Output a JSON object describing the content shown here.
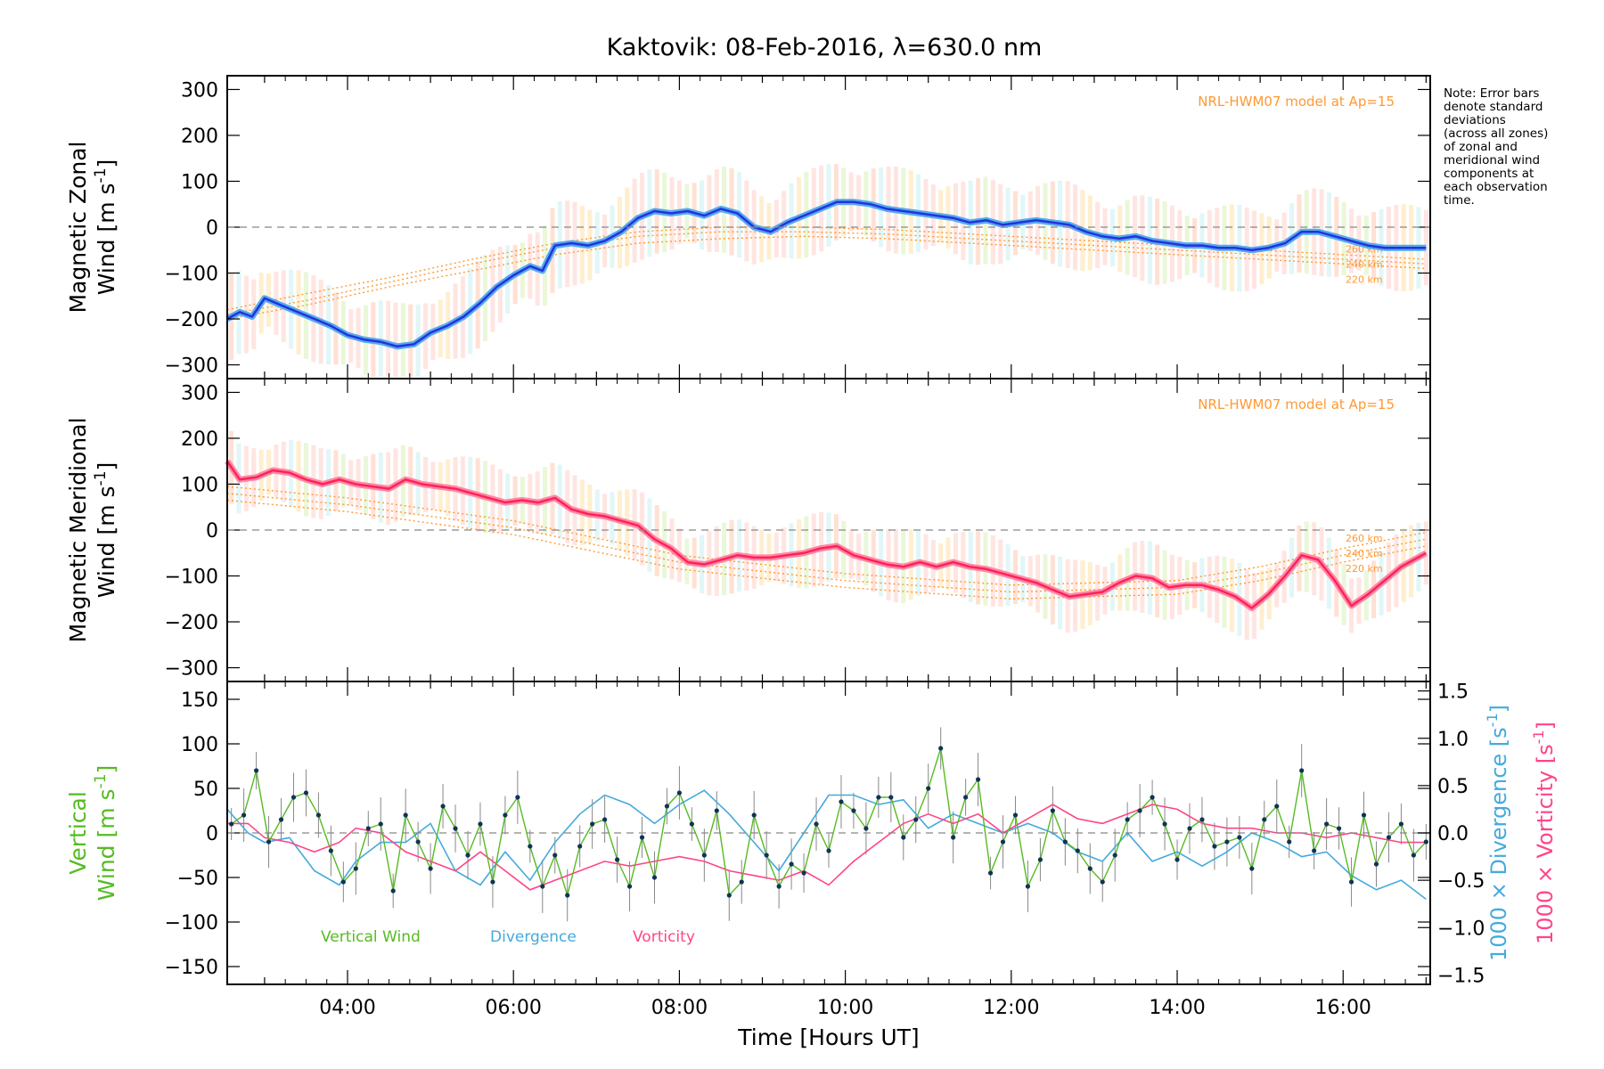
{
  "title": "Kaktovik: 08-Feb-2016, λ=630.0 nm",
  "note": "Note: Error bars\ndenote standard\ndeviations\n(across all zones)\nof zonal and\nmeridional wind\ncomponents at\neach observation\ntime.",
  "colors": {
    "zonal_mean": "#2233dd",
    "zonal_mean_light": "#55aaee",
    "meridional_mean": "#ff2255",
    "meridional_mean_light": "#ff88aa",
    "model": "#ff9933",
    "scatter": "#aaaaee",
    "vertical": "#55bb22",
    "divergence": "#44aadd",
    "vorticity": "#ff4488",
    "error_bar": "#888888"
  },
  "chart_data": [
    {
      "type": "line",
      "panel": "zonal",
      "ylabel_line1": "Magnetic Zonal",
      "ylabel_line2": "Wind [m s",
      "ylabel_sup": "-1",
      "ylabel_close": "]",
      "ylim": [
        -330,
        330
      ],
      "yticks": [
        300,
        200,
        100,
        0,
        -100,
        -200,
        -300
      ],
      "ytick_labels": [
        "300",
        "200",
        "100",
        "0",
        "−100",
        "−200",
        "−300"
      ],
      "xlim": [
        2.55,
        17.05
      ],
      "model_label": "NRL-HWM07 model at Ap=15",
      "model_alt_labels": [
        "260 km",
        "240 km",
        "220 km"
      ],
      "mean_x": [
        2.55,
        2.7,
        2.85,
        3.0,
        3.2,
        3.4,
        3.6,
        3.8,
        4.0,
        4.2,
        4.4,
        4.6,
        4.8,
        5.0,
        5.2,
        5.4,
        5.6,
        5.8,
        6.0,
        6.2,
        6.35,
        6.5,
        6.7,
        6.9,
        7.1,
        7.3,
        7.5,
        7.7,
        7.9,
        8.1,
        8.3,
        8.5,
        8.7,
        8.9,
        9.1,
        9.3,
        9.5,
        9.7,
        9.9,
        10.1,
        10.3,
        10.5,
        10.7,
        10.9,
        11.1,
        11.3,
        11.5,
        11.7,
        11.9,
        12.1,
        12.3,
        12.5,
        12.7,
        12.9,
        13.1,
        13.3,
        13.5,
        13.7,
        13.9,
        14.1,
        14.3,
        14.5,
        14.7,
        14.9,
        15.1,
        15.3,
        15.5,
        15.7,
        15.9,
        16.1,
        16.3,
        16.5,
        16.7,
        17.0
      ],
      "mean_y": [
        -200,
        -185,
        -195,
        -155,
        -170,
        -185,
        -200,
        -215,
        -235,
        -245,
        -250,
        -260,
        -255,
        -230,
        -215,
        -195,
        -165,
        -130,
        -105,
        -85,
        -95,
        -40,
        -35,
        -40,
        -30,
        -10,
        20,
        35,
        30,
        35,
        25,
        40,
        30,
        0,
        -10,
        10,
        25,
        40,
        55,
        55,
        50,
        40,
        35,
        30,
        25,
        20,
        10,
        15,
        5,
        10,
        15,
        10,
        5,
        -10,
        -20,
        -25,
        -20,
        -30,
        -35,
        -40,
        -40,
        -45,
        -45,
        -50,
        -45,
        -35,
        -10,
        -10,
        -20,
        -30,
        -40,
        -45,
        -45,
        -45
      ],
      "models": [
        {
          "name": "260 km",
          "x": [
            2.55,
            3.5,
            4.5,
            5.5,
            6.5,
            7.5,
            8.5,
            9.5,
            10.5,
            11.5,
            12.5,
            13.5,
            14.5,
            15.5,
            16.5,
            17.0
          ],
          "y": [
            -180,
            -145,
            -110,
            -70,
            -35,
            -10,
            0,
            0,
            -5,
            -15,
            -25,
            -35,
            -45,
            -55,
            -65,
            -70
          ]
        },
        {
          "name": "240 km",
          "x": [
            2.55,
            3.5,
            4.5,
            5.5,
            6.5,
            7.5,
            8.5,
            9.5,
            10.5,
            11.5,
            12.5,
            13.5,
            14.5,
            15.5,
            16.5,
            17.0
          ],
          "y": [
            -190,
            -160,
            -120,
            -80,
            -45,
            -20,
            -10,
            -10,
            -15,
            -25,
            -35,
            -45,
            -55,
            -65,
            -75,
            -80
          ]
        },
        {
          "name": "220 km",
          "x": [
            2.55,
            3.5,
            4.5,
            5.5,
            6.5,
            7.5,
            8.5,
            9.5,
            10.5,
            11.5,
            12.5,
            13.5,
            14.5,
            15.5,
            16.5,
            17.0
          ],
          "y": [
            -200,
            -170,
            -130,
            -95,
            -60,
            -35,
            -25,
            -20,
            -25,
            -35,
            -45,
            -55,
            -65,
            -75,
            -85,
            -90
          ]
        }
      ]
    },
    {
      "type": "line",
      "panel": "meridional",
      "ylabel_line1": "Magnetic Meridional",
      "ylabel_line2": "Wind [m s",
      "ylabel_sup": "-1",
      "ylabel_close": "]",
      "ylim": [
        -330,
        330
      ],
      "yticks": [
        300,
        200,
        100,
        0,
        -100,
        -200,
        -300
      ],
      "ytick_labels": [
        "300",
        "200",
        "100",
        "0",
        "−100",
        "−200",
        "−300"
      ],
      "xlim": [
        2.55,
        17.05
      ],
      "model_label": "NRL-HWM07 model at Ap=15",
      "model_alt_labels": [
        "260 km",
        "240 km",
        "220 km"
      ],
      "mean_x": [
        2.55,
        2.7,
        2.9,
        3.1,
        3.3,
        3.5,
        3.7,
        3.9,
        4.1,
        4.3,
        4.5,
        4.7,
        4.9,
        5.1,
        5.3,
        5.5,
        5.7,
        5.9,
        6.1,
        6.3,
        6.5,
        6.7,
        6.9,
        7.1,
        7.3,
        7.5,
        7.7,
        7.9,
        8.1,
        8.3,
        8.5,
        8.7,
        8.9,
        9.1,
        9.3,
        9.5,
        9.7,
        9.9,
        10.1,
        10.3,
        10.5,
        10.7,
        10.9,
        11.1,
        11.3,
        11.5,
        11.7,
        11.9,
        12.1,
        12.3,
        12.5,
        12.7,
        12.9,
        13.1,
        13.3,
        13.5,
        13.7,
        13.9,
        14.1,
        14.3,
        14.5,
        14.7,
        14.9,
        15.1,
        15.3,
        15.5,
        15.7,
        15.9,
        16.1,
        16.3,
        16.5,
        16.7,
        17.0
      ],
      "mean_y": [
        150,
        110,
        115,
        130,
        125,
        110,
        100,
        110,
        100,
        95,
        90,
        110,
        100,
        95,
        90,
        80,
        70,
        60,
        65,
        60,
        70,
        45,
        35,
        30,
        20,
        10,
        -20,
        -40,
        -70,
        -75,
        -65,
        -55,
        -60,
        -60,
        -55,
        -50,
        -40,
        -35,
        -55,
        -65,
        -75,
        -80,
        -70,
        -80,
        -70,
        -80,
        -85,
        -95,
        -105,
        -115,
        -130,
        -145,
        -140,
        -135,
        -115,
        -100,
        -105,
        -125,
        -120,
        -120,
        -130,
        -145,
        -170,
        -140,
        -100,
        -55,
        -65,
        -110,
        -165,
        -140,
        -110,
        -80,
        -50
      ]
    },
    {
      "type": "line",
      "panel": "vertical",
      "ylabel_line1": "Vertical",
      "ylabel_line2": "Wind [m s",
      "ylabel_sup": "-1",
      "ylabel_close": "]",
      "ylim": [
        -170,
        170
      ],
      "yticks": [
        150,
        100,
        50,
        0,
        -50,
        -100,
        -150
      ],
      "ytick_labels": [
        "150",
        "100",
        "50",
        "0",
        "−50",
        "−100",
        "−150"
      ],
      "y2lim": [
        -1.6,
        1.6
      ],
      "y2ticks": [
        1.5,
        1.0,
        0.5,
        0.0,
        -0.5,
        -1.0,
        -1.5
      ],
      "y2tick_labels": [
        "1.5",
        "1.0",
        "0.5",
        "0.0",
        "−0.5",
        "−1.0",
        "−1.5"
      ],
      "y2label_div": "1000 × Divergence [s",
      "y2label_vor": "1000 × Vorticity [s",
      "y2label_sup": "-1",
      "y2label_close": "]",
      "xlim": [
        2.55,
        17.05
      ],
      "xticks": [
        4,
        6,
        8,
        10,
        12,
        14,
        16
      ],
      "xtick_labels": [
        "04:00",
        "06:00",
        "08:00",
        "10:00",
        "12:00",
        "14:00",
        "16:00"
      ],
      "xlabel": "Time [Hours UT]",
      "legend": [
        "Vertical Wind",
        "Divergence",
        "Vorticity"
      ],
      "vertical_x": [
        2.6,
        2.75,
        2.9,
        3.05,
        3.2,
        3.35,
        3.5,
        3.65,
        3.8,
        3.95,
        4.1,
        4.25,
        4.4,
        4.55,
        4.7,
        4.85,
        5.0,
        5.15,
        5.3,
        5.45,
        5.6,
        5.75,
        5.9,
        6.05,
        6.2,
        6.35,
        6.5,
        6.65,
        6.8,
        6.95,
        7.1,
        7.25,
        7.4,
        7.55,
        7.7,
        7.85,
        8.0,
        8.15,
        8.3,
        8.45,
        8.6,
        8.75,
        8.9,
        9.05,
        9.2,
        9.35,
        9.5,
        9.65,
        9.8,
        9.95,
        10.1,
        10.25,
        10.4,
        10.55,
        10.7,
        10.85,
        11.0,
        11.15,
        11.3,
        11.45,
        11.6,
        11.75,
        11.9,
        12.05,
        12.2,
        12.35,
        12.5,
        12.65,
        12.8,
        12.95,
        13.1,
        13.25,
        13.4,
        13.55,
        13.7,
        13.85,
        14.0,
        14.15,
        14.3,
        14.45,
        14.6,
        14.75,
        14.9,
        15.05,
        15.2,
        15.35,
        15.5,
        15.65,
        15.8,
        15.95,
        16.1,
        16.25,
        16.4,
        16.55,
        16.7,
        16.85,
        17.0
      ],
      "vertical_y": [
        10,
        20,
        70,
        -10,
        15,
        40,
        45,
        20,
        -20,
        -55,
        -40,
        5,
        10,
        -65,
        20,
        -10,
        -40,
        30,
        5,
        -25,
        10,
        -55,
        20,
        40,
        -15,
        -60,
        -25,
        -70,
        -15,
        10,
        15,
        -30,
        -60,
        -5,
        -50,
        30,
        45,
        10,
        -25,
        25,
        -70,
        -55,
        20,
        -25,
        -60,
        -35,
        -45,
        10,
        -20,
        35,
        25,
        5,
        40,
        40,
        -5,
        15,
        50,
        95,
        -5,
        40,
        60,
        -45,
        -10,
        20,
        -60,
        -30,
        25,
        -10,
        -20,
        -40,
        -55,
        -25,
        15,
        25,
        40,
        10,
        -30,
        5,
        15,
        -15,
        -10,
        -5,
        -40,
        15,
        30,
        -10,
        70,
        -20,
        10,
        5,
        -55,
        20,
        -35,
        -5,
        10,
        -25,
        -10
      ],
      "divergence_x": [
        2.55,
        2.8,
        3.0,
        3.3,
        3.6,
        3.9,
        4.1,
        4.4,
        4.7,
        5.0,
        5.3,
        5.6,
        5.9,
        6.2,
        6.5,
        6.8,
        7.1,
        7.4,
        7.7,
        8.0,
        8.3,
        8.6,
        8.9,
        9.2,
        9.5,
        9.8,
        10.1,
        10.4,
        10.7,
        11.0,
        11.3,
        11.6,
        11.9,
        12.2,
        12.5,
        12.8,
        13.1,
        13.4,
        13.7,
        14.0,
        14.3,
        14.6,
        14.9,
        15.2,
        15.5,
        15.8,
        16.1,
        16.4,
        16.7,
        17.0
      ],
      "divergence_y": [
        0.25,
        0.0,
        -0.1,
        -0.05,
        -0.4,
        -0.55,
        -0.3,
        -0.1,
        -0.1,
        0.1,
        -0.4,
        -0.55,
        -0.2,
        -0.5,
        -0.1,
        0.2,
        0.4,
        0.3,
        0.1,
        0.3,
        0.45,
        0.2,
        -0.1,
        -0.4,
        0.0,
        0.4,
        0.4,
        0.3,
        0.35,
        0.05,
        0.2,
        0.1,
        0.0,
        0.1,
        0.0,
        -0.2,
        -0.3,
        0.0,
        -0.3,
        -0.2,
        -0.35,
        -0.2,
        0.0,
        -0.1,
        -0.25,
        -0.2,
        -0.45,
        -0.6,
        -0.5,
        -0.7
      ],
      "vorticity_x": [
        2.55,
        2.8,
        3.0,
        3.3,
        3.6,
        3.9,
        4.1,
        4.4,
        4.7,
        5.0,
        5.3,
        5.6,
        5.9,
        6.2,
        6.5,
        6.8,
        7.1,
        7.4,
        7.7,
        8.0,
        8.3,
        8.6,
        8.9,
        9.2,
        9.5,
        9.8,
        10.1,
        10.4,
        10.7,
        11.0,
        11.3,
        11.6,
        11.9,
        12.2,
        12.5,
        12.8,
        13.1,
        13.4,
        13.7,
        14.0,
        14.3,
        14.6,
        14.9,
        15.2,
        15.5,
        15.8,
        16.1,
        16.4,
        16.7,
        17.0
      ],
      "vorticity_y": [
        0.1,
        0.1,
        -0.05,
        -0.1,
        -0.2,
        -0.1,
        0.05,
        0.0,
        -0.2,
        -0.3,
        -0.4,
        -0.2,
        -0.4,
        -0.6,
        -0.5,
        -0.4,
        -0.3,
        -0.35,
        -0.3,
        -0.25,
        -0.3,
        -0.4,
        -0.45,
        -0.5,
        -0.4,
        -0.55,
        -0.3,
        -0.1,
        0.1,
        0.2,
        0.1,
        0.2,
        0.0,
        0.15,
        0.3,
        0.15,
        0.1,
        0.2,
        0.3,
        0.25,
        0.1,
        0.05,
        0.05,
        0.0,
        0.0,
        -0.05,
        0.0,
        -0.05,
        -0.1,
        -0.1
      ]
    }
  ]
}
